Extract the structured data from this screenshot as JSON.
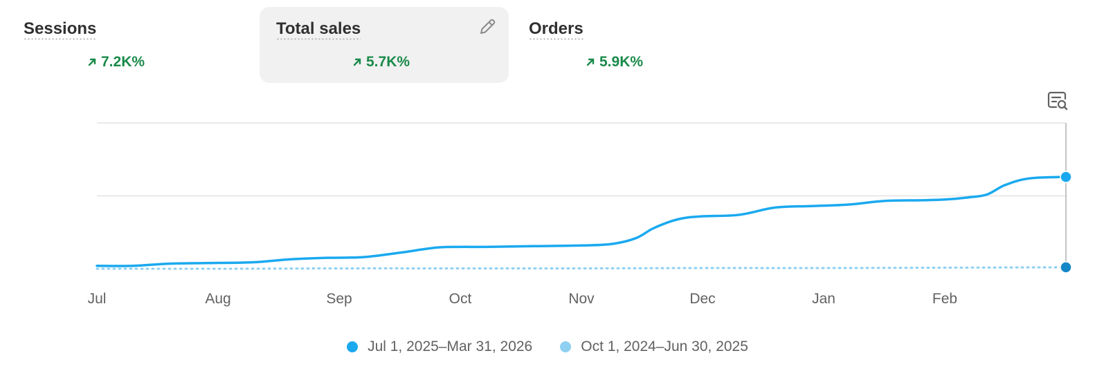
{
  "metrics": [
    {
      "label": "Sessions",
      "change": "7.2K%",
      "selected": false
    },
    {
      "label": "Total sales",
      "change": "5.7K%",
      "selected": true
    },
    {
      "label": "Orders",
      "change": "5.9K%",
      "selected": false
    }
  ],
  "icons": {
    "edit": "pencil-icon",
    "analyze": "chart-analyze-icon",
    "trend": "arrow-up-right-icon"
  },
  "colors": {
    "current": "#1aa9ef",
    "previous": "#8ed0f2",
    "positive": "#1a8a4a",
    "grid": "#e3e3e3"
  },
  "legend": [
    {
      "label": "Jul 1, 2025–Mar 31, 2026",
      "series": 0
    },
    {
      "label": "Oct 1, 2024–Jun 30, 2025",
      "series": 1
    }
  ],
  "chart_data": {
    "type": "line",
    "title": "",
    "xlabel": "",
    "ylabel": "",
    "ylim": [
      0,
      200
    ],
    "y_tick_labels_shown": false,
    "grid": "horizontal",
    "x_tick_labels": [
      "Jul",
      "Aug",
      "Sep",
      "Oct",
      "Nov",
      "Dec",
      "Jan",
      "Feb"
    ],
    "x_tick_positions": [
      0,
      1,
      2,
      3,
      4,
      5,
      6,
      7
    ],
    "x_range": [
      0,
      8
    ],
    "series": [
      {
        "name": "Jul 1, 2025–Mar 31, 2026",
        "style": "solid",
        "x": [
          0,
          0.3,
          0.6,
          1.0,
          1.3,
          1.6,
          1.9,
          2.2,
          2.5,
          2.8,
          3.0,
          3.2,
          3.6,
          4.0,
          4.25,
          4.45,
          4.6,
          4.8,
          5.0,
          5.3,
          5.6,
          5.9,
          6.2,
          6.5,
          6.8,
          7.0,
          7.2,
          7.35,
          7.5,
          7.7,
          8.0
        ],
        "values": [
          4,
          4,
          7,
          8,
          9,
          13,
          15,
          16,
          22,
          29,
          30,
          30,
          31,
          32,
          34,
          42,
          56,
          68,
          72,
          74,
          84,
          86,
          88,
          93,
          94,
          95,
          98,
          102,
          115,
          124,
          126
        ]
      },
      {
        "name": "Oct 1, 2024–Jun 30, 2025",
        "style": "dotted",
        "x": [
          0,
          1,
          2,
          3,
          4,
          5,
          6,
          7,
          8
        ],
        "values": [
          0,
          0,
          0.5,
          0.5,
          0.5,
          1,
          1,
          1.5,
          2
        ]
      }
    ]
  }
}
